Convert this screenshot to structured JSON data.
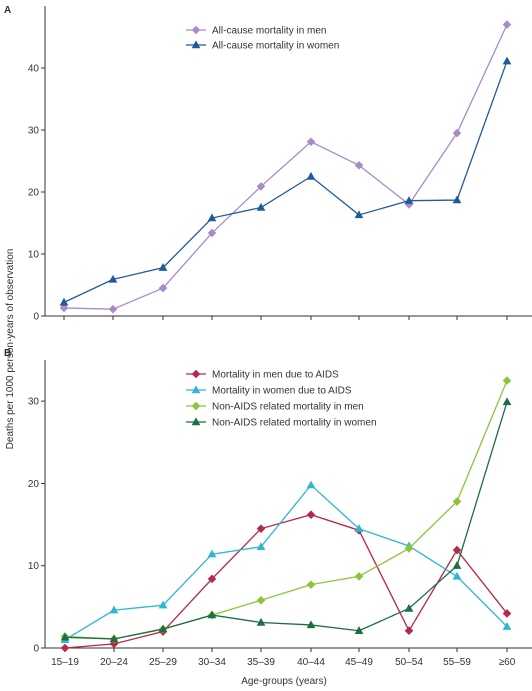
{
  "y_axis_label": "Deaths per 1000 person-years of observation",
  "x_axis_label": "Age-groups (years)",
  "categories": [
    "15–19",
    "20–24",
    "25–29",
    "30–34",
    "35–39",
    "40–44",
    "45–49",
    "50–54",
    "55–59",
    "≥60"
  ],
  "colors": {
    "axis": "#333333"
  },
  "chart_data": [
    {
      "type": "line",
      "panel": "A",
      "xlabel": "",
      "ylabel": "Deaths per 1000 person-years of observation",
      "categories": [
        "15–19",
        "20–24",
        "25–29",
        "30–34",
        "35–39",
        "40–44",
        "45–49",
        "50–54",
        "55–59",
        "≥60"
      ],
      "ylim": [
        0,
        50
      ],
      "yticks": [
        0,
        10,
        20,
        30,
        40
      ],
      "grid": false,
      "legend_position": "top-left",
      "series": [
        {
          "name": "All-cause mortality in men",
          "color": "#a98bc9",
          "marker": "diamond",
          "values": [
            1.3,
            1.1,
            4.5,
            13.4,
            20.9,
            28.1,
            24.3,
            18.0,
            29.5,
            47.0
          ]
        },
        {
          "name": "All-cause mortality in women",
          "color": "#1f5b9a",
          "marker": "triangle",
          "values": [
            2.2,
            5.9,
            7.8,
            15.8,
            17.5,
            22.5,
            16.3,
            18.6,
            18.7,
            41.1
          ]
        }
      ]
    },
    {
      "type": "line",
      "panel": "B",
      "xlabel": "Age-groups (years)",
      "ylabel": "",
      "categories": [
        "15–19",
        "20–24",
        "25–29",
        "30–34",
        "35–39",
        "40–44",
        "45–49",
        "50–54",
        "55–59",
        "≥60"
      ],
      "ylim": [
        0,
        35
      ],
      "yticks": [
        0,
        10,
        20,
        30
      ],
      "grid": false,
      "legend_position": "top-left",
      "series": [
        {
          "name": "Mortality in men due to AIDS",
          "color": "#b52a4b",
          "marker": "diamond",
          "values": [
            0.0,
            0.5,
            2.0,
            8.4,
            14.5,
            16.2,
            14.3,
            2.1,
            11.9,
            4.2
          ]
        },
        {
          "name": "Mortality in women due to AIDS",
          "color": "#2eb6d3",
          "marker": "triangle",
          "values": [
            1.0,
            4.6,
            5.2,
            11.4,
            12.3,
            19.8,
            14.5,
            12.4,
            8.7,
            2.6
          ]
        },
        {
          "name": "Non-AIDS related mortality in men",
          "color": "#8cc43c",
          "marker": "diamond",
          "values": [
            1.4,
            1.1,
            2.3,
            4.0,
            5.8,
            7.7,
            8.7,
            12.1,
            17.8,
            32.5
          ]
        },
        {
          "name": "Non-AIDS related mortality in women",
          "color": "#1e6e44",
          "marker": "triangle",
          "values": [
            1.3,
            1.1,
            2.3,
            4.0,
            3.1,
            2.8,
            2.1,
            4.8,
            10.0,
            29.9
          ]
        }
      ]
    }
  ]
}
